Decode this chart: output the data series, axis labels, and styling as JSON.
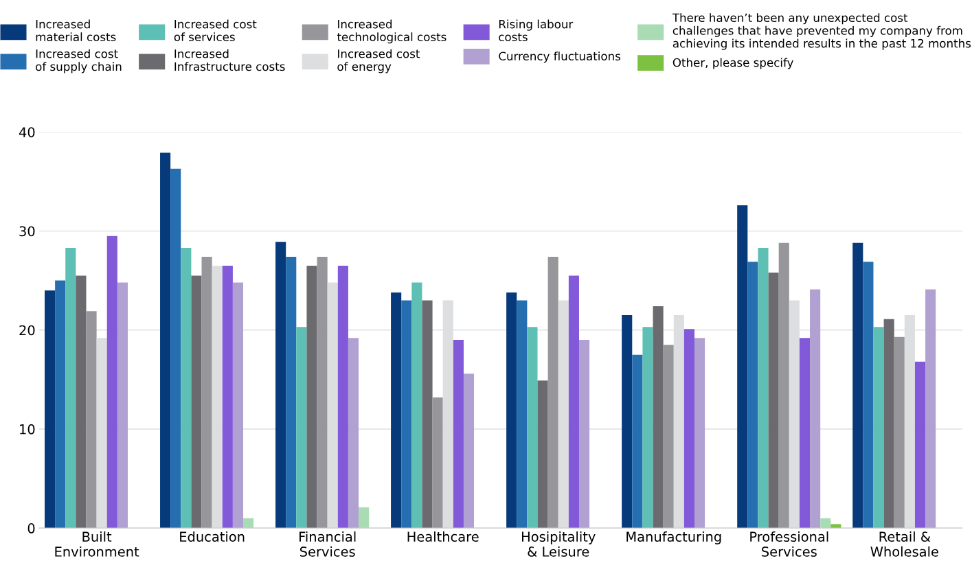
{
  "chart_data": {
    "type": "bar",
    "categories": [
      "Built\nEnvironment",
      "Education",
      "Financial\nServices",
      "Healthcare",
      "Hosipitality\n& Leisure",
      "Manufacturing",
      "Professional\nServices",
      "Retail &\nWholesale"
    ],
    "series": [
      {
        "name": "Increased\nmaterial costs",
        "color": "#063a7a",
        "values": [
          24.0,
          37.9,
          28.9,
          23.8,
          23.8,
          21.5,
          32.6,
          28.8
        ]
      },
      {
        "name": "Increased cost\nof supply chain",
        "color": "#256eb0",
        "values": [
          25.0,
          36.3,
          27.4,
          23.0,
          23.0,
          17.5,
          26.9,
          26.9
        ]
      },
      {
        "name": "Increased cost\nof services",
        "color": "#5ec0b4",
        "values": [
          28.3,
          28.3,
          20.3,
          24.8,
          20.3,
          20.3,
          28.3,
          20.3
        ]
      },
      {
        "name": "Increased\nInfrastructure costs",
        "color": "#6b6b6f",
        "values": [
          25.5,
          25.5,
          26.5,
          23.0,
          14.9,
          22.4,
          25.8,
          21.1
        ]
      },
      {
        "name": "Increased\ntechnological costs",
        "color": "#97979b",
        "values": [
          21.9,
          27.4,
          27.4,
          13.2,
          27.4,
          18.5,
          28.8,
          19.3
        ]
      },
      {
        "name": "Increased cost\nof energy",
        "color": "#dddee0",
        "values": [
          19.2,
          26.5,
          24.8,
          23.0,
          23.0,
          21.5,
          23.0,
          21.5
        ]
      },
      {
        "name": "Rising labour\ncosts",
        "color": "#8159d9",
        "values": [
          29.5,
          26.5,
          26.5,
          19.0,
          25.5,
          20.1,
          19.2,
          16.8
        ]
      },
      {
        "name": "Currency fluctuations",
        "color": "#b1a1d2",
        "values": [
          24.8,
          24.8,
          19.2,
          15.6,
          19.0,
          19.2,
          24.1,
          24.1
        ]
      },
      {
        "name": "There haven’t been any unexpected cost\nchallenges that have prevented my company from\nachieving its intended results in the past 12 months",
        "color": "#a9dcb5",
        "values": [
          0,
          1.0,
          2.1,
          0,
          0,
          0,
          1.0,
          null
        ]
      },
      {
        "name": "Other, please specify",
        "color": "#7cc142",
        "values": [
          0,
          0,
          0,
          0,
          0,
          0,
          0.4,
          null
        ]
      }
    ],
    "ylim": [
      0,
      40
    ],
    "yticks": [
      0,
      10,
      20,
      30,
      40
    ],
    "grid": "y",
    "legend": "top"
  }
}
